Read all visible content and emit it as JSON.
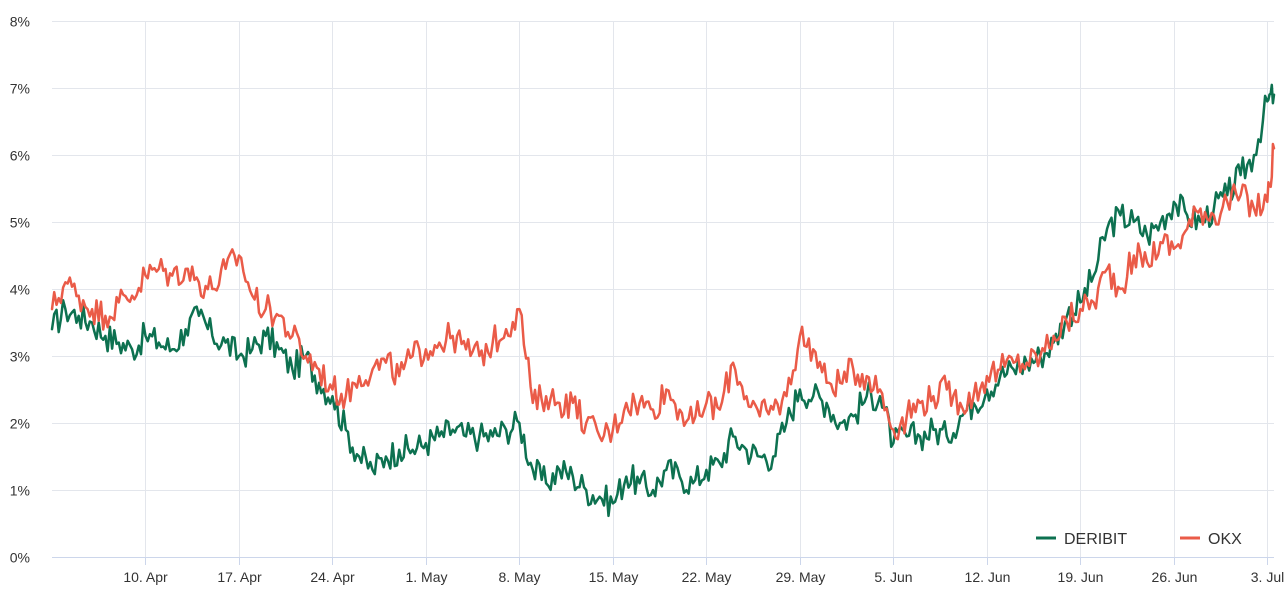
{
  "chart_data": {
    "type": "line",
    "title": "",
    "xlabel": "",
    "ylabel": "",
    "ylim": [
      0,
      8
    ],
    "y_ticks": [
      "0%",
      "1%",
      "2%",
      "3%",
      "4%",
      "5%",
      "6%",
      "7%",
      "8%"
    ],
    "x_ticks": [
      "10. Apr",
      "17. Apr",
      "24. Apr",
      "1. May",
      "8. May",
      "15. May",
      "22. May",
      "29. May",
      "5. Jun",
      "12. Jun",
      "19. Jun",
      "26. Jun",
      "3. Jul"
    ],
    "x_tick_day_index": [
      7,
      14,
      21,
      28,
      35,
      42,
      49,
      56,
      63,
      70,
      77,
      84,
      91
    ],
    "xlim": [
      0,
      91.5
    ],
    "grid": true,
    "legend_position": "bottom-right",
    "series": [
      {
        "name": "DERIBIT",
        "color": "#0d7150",
        "x": [
          0,
          1,
          2,
          3,
          4,
          5,
          6,
          7,
          8,
          9,
          10,
          11,
          12,
          13,
          14,
          15,
          16,
          17,
          18,
          19,
          20,
          21,
          22,
          23,
          24,
          25,
          26,
          27,
          28,
          29,
          30,
          31,
          32,
          33,
          34,
          35,
          36,
          37,
          38,
          39,
          40,
          41,
          42,
          43,
          44,
          45,
          46,
          47,
          48,
          49,
          50,
          51,
          52,
          53,
          54,
          55,
          56,
          57,
          58,
          59,
          60,
          61,
          62,
          63,
          64,
          65,
          66,
          67,
          68,
          69,
          70,
          71,
          72,
          73,
          74,
          75,
          76,
          77,
          78,
          79,
          80,
          81,
          82,
          83,
          84,
          85,
          86,
          87,
          88,
          89,
          90,
          91,
          91.5
        ],
        "values": [
          3.4,
          3.7,
          3.6,
          3.5,
          3.3,
          3.2,
          3.1,
          3.3,
          3.2,
          3.1,
          3.4,
          3.6,
          3.3,
          3.2,
          3.0,
          3.1,
          3.3,
          3.1,
          2.8,
          3.0,
          2.6,
          2.4,
          1.9,
          1.5,
          1.3,
          1.5,
          1.6,
          1.6,
          1.7,
          1.8,
          1.9,
          1.8,
          1.8,
          1.8,
          1.9,
          2.0,
          1.3,
          1.1,
          1.3,
          1.2,
          1.0,
          0.9,
          0.8,
          1.2,
          1.1,
          1.0,
          1.3,
          1.2,
          1.1,
          1.3,
          1.4,
          1.8,
          1.6,
          1.5,
          1.5,
          2.0,
          2.5,
          2.4,
          2.3,
          2.0,
          2.1,
          2.4,
          2.4,
          1.7,
          1.8,
          1.8,
          1.9,
          1.8,
          2.1,
          2.3,
          2.5,
          2.7,
          2.8,
          2.9,
          3.0,
          3.2,
          3.6,
          3.8,
          4.2,
          4.9,
          5.1,
          5.0,
          4.8,
          5.0,
          5.3,
          5.1,
          5.0,
          5.2,
          5.4,
          5.7,
          6.0,
          6.8,
          6.9
        ]
      },
      {
        "name": "OKX",
        "color": "#ea5b48",
        "x": [
          0,
          1,
          2,
          3,
          4,
          5,
          6,
          7,
          8,
          9,
          10,
          11,
          12,
          13,
          14,
          15,
          16,
          17,
          18,
          19,
          20,
          21,
          22,
          23,
          24,
          25,
          26,
          27,
          28,
          29,
          30,
          31,
          32,
          33,
          34,
          35,
          36,
          37,
          38,
          39,
          40,
          41,
          42,
          43,
          44,
          45,
          46,
          47,
          48,
          49,
          50,
          51,
          52,
          53,
          54,
          55,
          56,
          57,
          58,
          59,
          60,
          61,
          62,
          63,
          64,
          65,
          66,
          67,
          68,
          69,
          70,
          71,
          72,
          73,
          74,
          75,
          76,
          77,
          78,
          79,
          80,
          81,
          82,
          83,
          84,
          85,
          86,
          87,
          88,
          89,
          90,
          91,
          91.5
        ],
        "values": [
          3.7,
          4.1,
          3.9,
          3.7,
          3.6,
          3.8,
          3.9,
          4.2,
          4.3,
          4.2,
          4.3,
          4.1,
          4.0,
          4.3,
          4.5,
          3.9,
          3.7,
          3.6,
          3.3,
          3.0,
          2.8,
          2.5,
          2.4,
          2.7,
          2.8,
          2.9,
          2.7,
          3.0,
          3.1,
          3.2,
          3.3,
          3.1,
          3.0,
          3.2,
          3.4,
          3.7,
          2.3,
          2.4,
          2.3,
          2.3,
          2.0,
          1.8,
          1.9,
          2.3,
          2.3,
          2.2,
          2.5,
          2.2,
          2.0,
          2.3,
          2.2,
          2.9,
          2.4,
          2.1,
          2.2,
          2.4,
          3.3,
          3.1,
          2.6,
          2.6,
          2.8,
          2.7,
          2.5,
          1.9,
          2.1,
          2.3,
          2.4,
          2.5,
          2.3,
          2.4,
          2.7,
          2.8,
          2.9,
          2.9,
          3.0,
          3.3,
          3.5,
          3.7,
          3.8,
          4.3,
          4.0,
          4.5,
          4.4,
          4.7,
          4.6,
          4.9,
          5.2,
          5.1,
          5.3,
          5.4,
          5.2,
          5.3,
          6.1
        ]
      }
    ]
  }
}
